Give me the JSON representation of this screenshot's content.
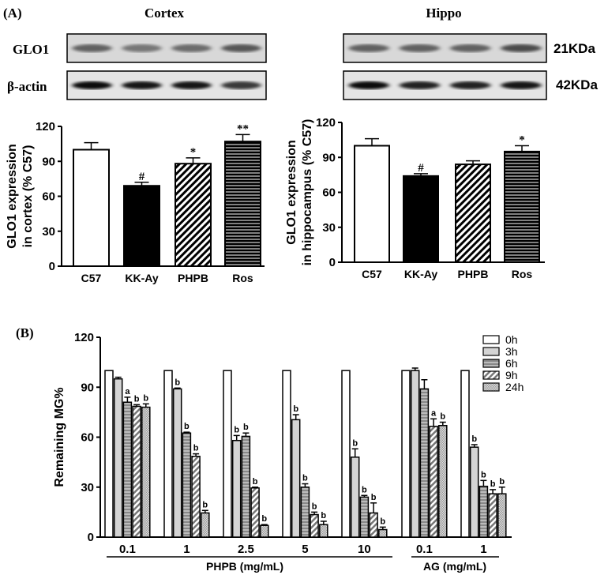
{
  "panel_a": {
    "label": "(A)",
    "blot_row_labels": [
      "GLO1",
      "β-actin"
    ],
    "kda_labels": [
      "21KDa",
      "42KDa"
    ],
    "titles": [
      "Cortex",
      "Hippo"
    ]
  },
  "panel_b": {
    "label": "(B)"
  },
  "chart_data": [
    {
      "type": "bar",
      "title": "Cortex",
      "ylabel": "GLO1 expression\nin cortex (% C57)",
      "categories": [
        "C57",
        "KK-Ay",
        "PHPB",
        "Ros"
      ],
      "values": [
        100,
        69,
        88,
        107
      ],
      "errors": [
        6,
        3,
        5,
        6
      ],
      "annotations": [
        "",
        "#",
        "*",
        "**"
      ],
      "fills": [
        "white",
        "black",
        "diagonal",
        "horizontal"
      ],
      "ylim": [
        0,
        120
      ],
      "yticks": [
        0,
        30,
        60,
        90,
        120
      ]
    },
    {
      "type": "bar",
      "title": "Hippo",
      "ylabel": "GLO1 expression\nin hippocampus (% C57)",
      "categories": [
        "C57",
        "KK-Ay",
        "PHPB",
        "Ros"
      ],
      "values": [
        100,
        74,
        84,
        95
      ],
      "errors": [
        6,
        2,
        3,
        5
      ],
      "annotations": [
        "",
        "#",
        "",
        "*"
      ],
      "fills": [
        "white",
        "black",
        "diagonal",
        "horizontal"
      ],
      "ylim": [
        0,
        120
      ],
      "yticks": [
        0,
        30,
        60,
        90,
        120
      ]
    },
    {
      "type": "bar",
      "ylabel": "Remaining MG%",
      "ylim": [
        0,
        120
      ],
      "yticks": [
        0,
        30,
        60,
        90,
        120
      ],
      "categories": [
        "0.1",
        "1",
        "2.5",
        "5",
        "10",
        "0.1",
        "1"
      ],
      "category_groups": [
        {
          "label": "PHPB (mg/mL)",
          "categories": [
            "0.1",
            "1",
            "2.5",
            "5",
            "10"
          ]
        },
        {
          "label": "AG (mg/mL)",
          "categories": [
            "0.1",
            "1"
          ]
        }
      ],
      "legend_position": "top-right",
      "series": [
        {
          "name": "0h",
          "values": [
            100,
            100,
            100,
            100,
            100,
            100,
            100
          ],
          "errors": [
            0,
            0,
            0,
            0,
            0,
            0,
            0
          ],
          "annotations": [
            "",
            "",
            "",
            "",
            "",
            "",
            ""
          ]
        },
        {
          "name": "3h",
          "values": [
            95,
            89,
            58,
            70.5,
            48,
            100,
            54
          ],
          "errors": [
            1,
            0.5,
            3,
            3,
            5,
            1.5,
            1.5
          ],
          "annotations": [
            "",
            "b",
            "b",
            "b",
            "b",
            "",
            "b"
          ]
        },
        {
          "name": "6h",
          "values": [
            81,
            62.5,
            60.5,
            30,
            24,
            89,
            30.5
          ],
          "errors": [
            3,
            0.5,
            2,
            2,
            1,
            5.5,
            3.5
          ],
          "annotations": [
            "a",
            "b",
            "b",
            "b",
            "b",
            "",
            "b"
          ]
        },
        {
          "name": "9h",
          "values": [
            78.5,
            48.5,
            29.5,
            13.5,
            14.5,
            66.5,
            26
          ],
          "errors": [
            1,
            1.5,
            0.5,
            1.5,
            6,
            4.5,
            2.5
          ],
          "annotations": [
            "b",
            "b",
            "b",
            "b",
            "b",
            "a",
            "b"
          ]
        },
        {
          "name": "24h",
          "values": [
            78,
            14.5,
            7,
            7.5,
            4.5,
            67,
            26
          ],
          "errors": [
            2,
            1.5,
            0.5,
            2,
            1.5,
            2,
            4
          ],
          "annotations": [
            "b",
            "b",
            "b",
            "b",
            "b",
            "b",
            "b"
          ]
        }
      ]
    }
  ]
}
